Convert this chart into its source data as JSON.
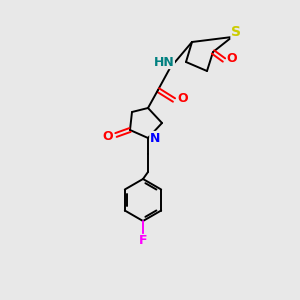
{
  "bg_color": "#e8e8e8",
  "bond_color": "#000000",
  "atom_colors": {
    "S": "#cccc00",
    "N_amide": "#008080",
    "N_pyrrolidine": "#0000ff",
    "O": "#ff0000",
    "F": "#ff00ff",
    "C": "#000000"
  },
  "lw": 1.4,
  "font_size": 9
}
